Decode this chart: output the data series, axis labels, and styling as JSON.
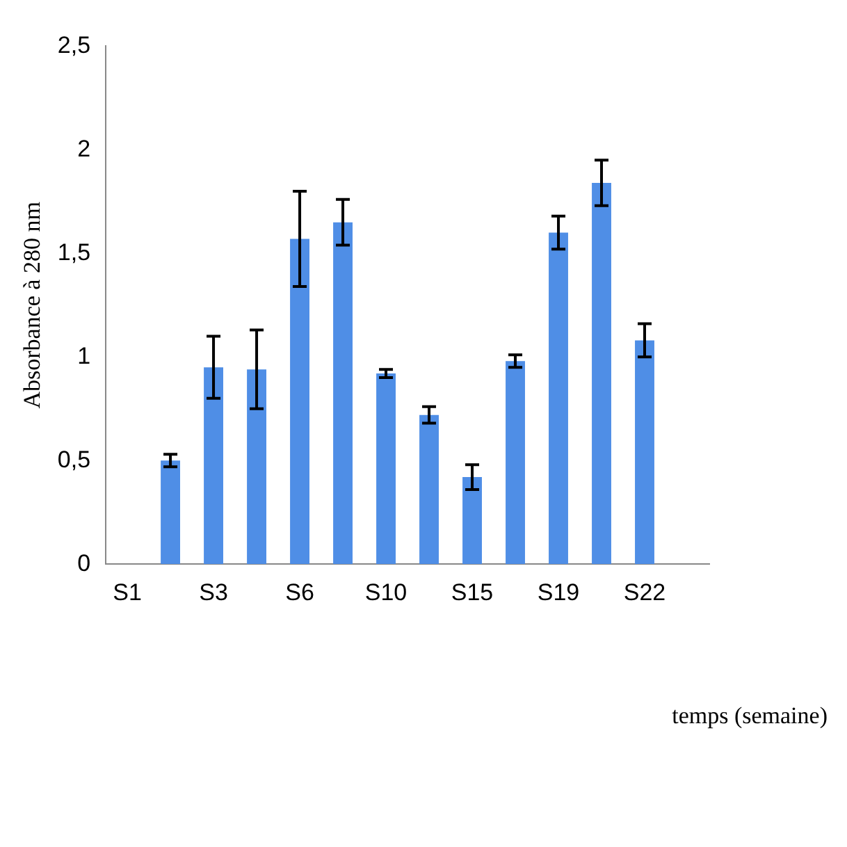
{
  "chart_data": {
    "type": "bar",
    "xlabel": "temps (semaine)",
    "ylabel": "Absorbance à 280 nm",
    "categories": [
      "S1",
      null,
      "S3",
      null,
      "S6",
      null,
      "S10",
      null,
      "S15",
      null,
      "S19",
      null,
      "S22",
      null
    ],
    "values": [
      null,
      0.5,
      0.95,
      0.94,
      1.57,
      1.65,
      0.92,
      0.72,
      0.42,
      0.98,
      1.6,
      1.84,
      1.08,
      null
    ],
    "errors": [
      null,
      0.03,
      0.15,
      0.19,
      0.23,
      0.11,
      0.02,
      0.04,
      0.06,
      0.03,
      0.08,
      0.11,
      0.08,
      null
    ],
    "color": "#4f8ee6",
    "ylim": [
      0,
      2.5
    ],
    "yticks": [
      0,
      {
        "value": 0.5,
        "label": "0,5"
      },
      1,
      {
        "value": 1.5,
        "label": "1,5"
      },
      2,
      {
        "value": 2.5,
        "label": "2,5"
      }
    ],
    "grid": false,
    "legend": false
  }
}
